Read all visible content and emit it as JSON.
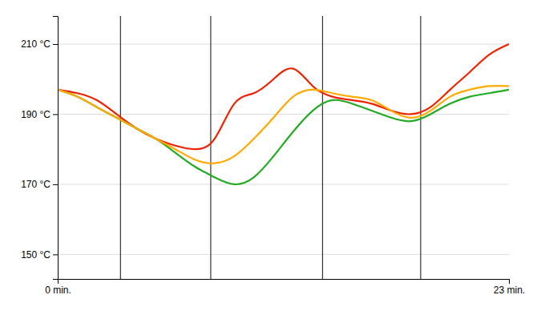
{
  "chart_data": {
    "type": "line",
    "x": [
      0,
      1,
      2,
      3,
      4,
      5,
      6,
      7,
      8,
      9,
      10,
      11,
      12,
      13,
      14,
      15,
      16,
      17,
      18,
      19,
      20,
      21,
      22,
      23
    ],
    "series": [
      {
        "color": "#ee2200",
        "values": [
          197,
          196,
          194,
          190,
          186,
          183,
          181,
          180,
          183,
          193,
          196,
          200,
          203,
          198,
          195,
          194,
          193,
          191,
          190,
          192,
          197,
          202,
          207,
          210
        ]
      },
      {
        "color": "#22aa22",
        "values": [
          197,
          195,
          192,
          189,
          186,
          183,
          179,
          175,
          172,
          170,
          172,
          178,
          185,
          191,
          194,
          193,
          191,
          189,
          188,
          190,
          193,
          195,
          196,
          197
        ]
      },
      {
        "color": "#ffaa00",
        "values": [
          197,
          195,
          192,
          189,
          186,
          183,
          180,
          177,
          176,
          178,
          183,
          189,
          195,
          197,
          196,
          195,
          194,
          191,
          189,
          191,
          195,
          197,
          198,
          198
        ]
      }
    ],
    "vlines": [
      3.2,
      7.8,
      13.5,
      18.5
    ],
    "xlim": [
      0,
      23
    ],
    "xticks": [
      {
        "value": 0,
        "label": "0 min."
      },
      {
        "value": 23,
        "label": "23 min."
      }
    ],
    "ylim": [
      143,
      218
    ],
    "yticks": [
      {
        "value": 150,
        "label": "150 °C"
      },
      {
        "value": 170,
        "label": "170 °C"
      },
      {
        "value": 190,
        "label": "190 °C"
      },
      {
        "value": 210,
        "label": "210 °C"
      }
    ],
    "grid": true
  }
}
